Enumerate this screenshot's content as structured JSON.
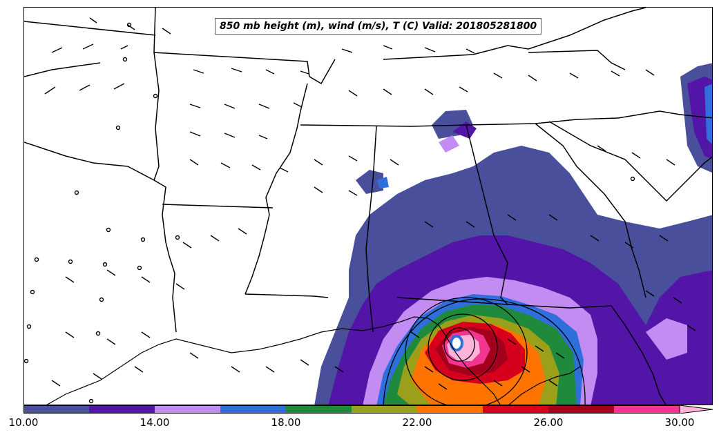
{
  "title": "850 mb height (m), wind (m/s), T (C) Valid: 201805281800",
  "colorbar": {
    "ticks": [
      "10.00",
      "14.00",
      "18.00",
      "22.00",
      "26.00",
      "30.00"
    ],
    "range": [
      10,
      31
    ],
    "bin_width": 2,
    "extend": "max",
    "colors": [
      "#4a4f9c",
      "#5314a8",
      "#c38cf2",
      "#2f6fdc",
      "#1f8a3c",
      "#9aa01a",
      "#ff7300",
      "#d6001c",
      "#a3001d",
      "#f23591",
      "#ffb3d9"
    ]
  },
  "map": {
    "region": "Southeastern United States",
    "features": [
      "state-boundaries",
      "coastline",
      "wind-barbs",
      "height-contours",
      "wind-speed-fill"
    ],
    "storm_center_marker": "circle"
  }
}
